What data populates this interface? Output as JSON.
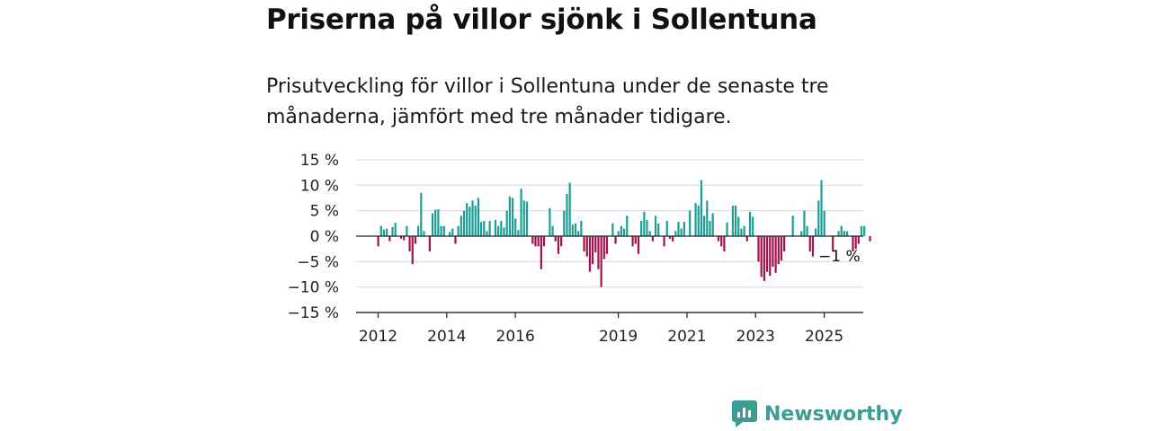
{
  "title": "Priserna på villor sjönk i Sollentuna",
  "subtitle": "Prisutveckling för villor i Sollentuna under de senaste tre månaderna, jämfört med tre månader tidigare.",
  "brand": {
    "name": "Newsworthy"
  },
  "colors": {
    "positive": "#1a9e96",
    "negative": "#a3124c",
    "grid": "#d8d8d8",
    "axis": "#222222",
    "brand": "#3d9c93"
  },
  "chart_data": {
    "type": "bar",
    "ylim": [
      -15,
      15
    ],
    "yticks": [
      15,
      10,
      5,
      0,
      -5,
      -10,
      -15
    ],
    "ytick_labels": [
      "15 %",
      "10 %",
      "5 %",
      "0 %",
      "−5 %",
      "−10 %",
      "−15 %"
    ],
    "x_start": "2012-01",
    "xtick_labels": [
      {
        "label": "2012",
        "month": "2012-01"
      },
      {
        "label": "2014",
        "month": "2014-01"
      },
      {
        "label": "2016",
        "month": "2016-01"
      },
      {
        "label": "2019",
        "month": "2019-01"
      },
      {
        "label": "2021",
        "month": "2021-01"
      },
      {
        "label": "2023",
        "month": "2023-01"
      },
      {
        "label": "2025",
        "month": "2025-01"
      }
    ],
    "annotation": "−1 %",
    "values": [
      -2,
      2,
      1.3,
      1.5,
      -1,
      1.8,
      2.6,
      0,
      -0.5,
      -0.8,
      2,
      -3,
      -5.5,
      -1.5,
      2,
      8.5,
      1,
      0,
      -3,
      4.5,
      5.2,
      5.3,
      2,
      2,
      0,
      0.8,
      1.5,
      -1.5,
      2,
      4,
      5,
      6.5,
      5.8,
      7,
      6,
      7.5,
      2.8,
      3,
      1,
      3,
      0,
      3.2,
      2,
      3,
      1.7,
      5,
      7.8,
      7.5,
      3.5,
      1.2,
      9.3,
      7,
      6.8,
      0,
      -1.5,
      -2,
      -2,
      -6.5,
      -2,
      0,
      5.5,
      2,
      -1,
      -3.5,
      -2,
      5,
      8.3,
      10.5,
      2.3,
      2.5,
      1,
      3,
      -3,
      -4,
      -7,
      -5.5,
      -3.2,
      -6.5,
      -10,
      -4.5,
      -3.5,
      0,
      2.5,
      -1.5,
      1,
      2,
      1.5,
      4,
      0,
      -2,
      -1.5,
      -3.5,
      3,
      4.8,
      3.2,
      1,
      -1,
      4,
      2.5,
      0,
      -2,
      3,
      -0.5,
      -1,
      1,
      2.8,
      1.5,
      2.8,
      0,
      5,
      0,
      6.5,
      6,
      11,
      4,
      7,
      3,
      4.5,
      0,
      -1,
      -2,
      -3,
      2.7,
      0,
      6,
      6,
      3.8,
      1.5,
      2,
      -1,
      4.8,
      3.8,
      0,
      -5,
      -8,
      -8.8,
      -7,
      -7.8,
      -6,
      -7.2,
      -5.5,
      -4.8,
      -3,
      0,
      0,
      4,
      0,
      0,
      1,
      5,
      2,
      -3,
      -4,
      1.5,
      7,
      11,
      5,
      0,
      0,
      -3,
      0,
      1,
      2,
      1,
      1,
      0,
      -3,
      -2.5,
      -1.5,
      2,
      2,
      0,
      -1
    ]
  }
}
